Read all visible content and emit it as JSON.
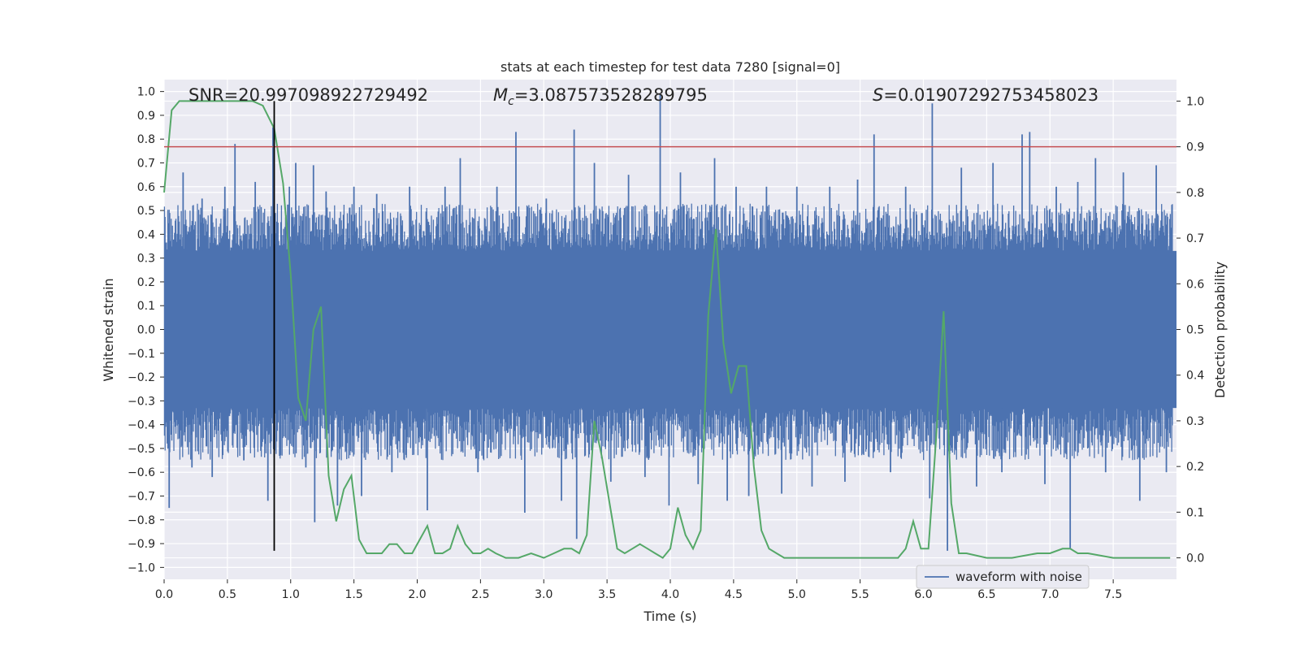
{
  "chart_data": {
    "type": "line",
    "title": "stats at each timestep for test data 7280 [signal=0]",
    "xlabel": "Time (s)",
    "ylabel": "Whitened strain",
    "y2label": "Detection probability",
    "xlim": [
      0.0,
      8.0
    ],
    "ylim": [
      -1.05,
      1.05
    ],
    "y2lim": [
      -0.047,
      1.047
    ],
    "x_ticks": [
      "0.0",
      "0.5",
      "1.0",
      "1.5",
      "2.0",
      "2.5",
      "3.0",
      "3.5",
      "4.0",
      "4.5",
      "5.0",
      "5.5",
      "6.0",
      "6.5",
      "7.0",
      "7.5"
    ],
    "y_ticks": [
      "1.0",
      "0.9",
      "0.8",
      "0.7",
      "0.6",
      "0.5",
      "0.4",
      "0.3",
      "0.2",
      "0.1",
      "0.0",
      "−0.1",
      "−0.2",
      "−0.3",
      "−0.4",
      "−0.5",
      "−0.6",
      "−0.7",
      "−0.8",
      "−0.9",
      "−1.0"
    ],
    "y2_ticks": [
      "1.0",
      "0.9",
      "0.8",
      "0.7",
      "0.6",
      "0.5",
      "0.4",
      "0.3",
      "0.2",
      "0.1",
      "0.0"
    ],
    "annotations": {
      "snr": "SNR=20.997098922729492",
      "mc_symbol": "M",
      "mc_subscript": "c",
      "mc_value": "=3.087573528289795",
      "s_symbol": "S",
      "s_value": "=0.01907292753458023"
    },
    "threshold": 0.9,
    "marker_time": 0.87,
    "waveform": {
      "name": "waveform with noise",
      "band_upper": 0.33,
      "band_lower": -0.33,
      "spikes": [
        [
          0.04,
          -0.75
        ],
        [
          0.15,
          0.66
        ],
        [
          0.22,
          -0.58
        ],
        [
          0.3,
          0.55
        ],
        [
          0.38,
          -0.62
        ],
        [
          0.48,
          0.6
        ],
        [
          0.56,
          0.78
        ],
        [
          0.63,
          -0.55
        ],
        [
          0.72,
          0.62
        ],
        [
          0.82,
          -0.72
        ],
        [
          0.86,
          0.85
        ],
        [
          0.99,
          0.6
        ],
        [
          1.04,
          0.7
        ],
        [
          1.12,
          -0.58
        ],
        [
          1.18,
          0.69
        ],
        [
          1.19,
          -0.81
        ],
        [
          1.28,
          0.58
        ],
        [
          1.37,
          -0.74
        ],
        [
          1.5,
          0.6
        ],
        [
          1.56,
          -0.7
        ],
        [
          1.68,
          0.57
        ],
        [
          1.8,
          -0.6
        ],
        [
          1.94,
          0.6
        ],
        [
          2.08,
          -0.76
        ],
        [
          2.22,
          0.6
        ],
        [
          2.34,
          0.72
        ],
        [
          2.48,
          -0.6
        ],
        [
          2.63,
          0.6
        ],
        [
          2.78,
          0.83
        ],
        [
          2.85,
          -0.77
        ],
        [
          3.02,
          0.55
        ],
        [
          3.14,
          -0.72
        ],
        [
          3.24,
          0.84
        ],
        [
          3.26,
          -0.88
        ],
        [
          3.4,
          0.7
        ],
        [
          3.53,
          -0.64
        ],
        [
          3.67,
          0.65
        ],
        [
          3.8,
          -0.62
        ],
        [
          3.92,
          0.99
        ],
        [
          3.99,
          -0.74
        ],
        [
          4.08,
          0.66
        ],
        [
          4.22,
          -0.65
        ],
        [
          4.35,
          0.72
        ],
        [
          4.45,
          -0.72
        ],
        [
          4.52,
          0.6
        ],
        [
          4.62,
          -0.7
        ],
        [
          4.76,
          0.6
        ],
        [
          4.88,
          -0.69
        ],
        [
          5.0,
          0.6
        ],
        [
          5.12,
          -0.66
        ],
        [
          5.26,
          0.6
        ],
        [
          5.38,
          -0.64
        ],
        [
          5.48,
          0.63
        ],
        [
          5.61,
          0.82
        ],
        [
          5.74,
          -0.6
        ],
        [
          5.86,
          0.6
        ],
        [
          6.05,
          -0.71
        ],
        [
          6.07,
          0.95
        ],
        [
          6.19,
          -0.93
        ],
        [
          6.3,
          0.68
        ],
        [
          6.42,
          -0.66
        ],
        [
          6.55,
          0.7
        ],
        [
          6.62,
          -0.6
        ],
        [
          6.78,
          0.82
        ],
        [
          6.84,
          0.83
        ],
        [
          6.96,
          -0.65
        ],
        [
          7.05,
          0.6
        ],
        [
          7.16,
          -0.92
        ],
        [
          7.22,
          0.62
        ],
        [
          7.36,
          0.72
        ],
        [
          7.44,
          -0.6
        ],
        [
          7.58,
          0.66
        ],
        [
          7.71,
          -0.72
        ],
        [
          7.84,
          0.69
        ],
        [
          7.92,
          -0.6
        ]
      ]
    },
    "probability": {
      "x": [
        0.0,
        0.06,
        0.12,
        0.3,
        0.5,
        0.7,
        0.78,
        0.87,
        0.94,
        1.0,
        1.06,
        1.12,
        1.18,
        1.24,
        1.3,
        1.36,
        1.42,
        1.48,
        1.54,
        1.6,
        1.66,
        1.72,
        1.78,
        1.84,
        1.9,
        1.96,
        2.02,
        2.08,
        2.14,
        2.2,
        2.26,
        2.32,
        2.38,
        2.44,
        2.5,
        2.56,
        2.62,
        2.7,
        2.8,
        2.9,
        3.0,
        3.08,
        3.16,
        3.22,
        3.28,
        3.34,
        3.4,
        3.46,
        3.52,
        3.58,
        3.64,
        3.7,
        3.76,
        3.82,
        3.88,
        3.94,
        4.0,
        4.06,
        4.12,
        4.18,
        4.24,
        4.3,
        4.36,
        4.42,
        4.48,
        4.54,
        4.6,
        4.66,
        4.72,
        4.78,
        4.84,
        4.9,
        5.0,
        5.2,
        5.4,
        5.6,
        5.8,
        5.86,
        5.92,
        5.98,
        6.04,
        6.1,
        6.16,
        6.22,
        6.28,
        6.34,
        6.5,
        6.7,
        6.9,
        7.0,
        7.1,
        7.16,
        7.22,
        7.3,
        7.5,
        7.7,
        7.95
      ],
      "y": [
        0.8,
        0.98,
        1.0,
        1.0,
        1.0,
        1.0,
        0.99,
        0.94,
        0.82,
        0.62,
        0.35,
        0.3,
        0.5,
        0.55,
        0.18,
        0.08,
        0.15,
        0.18,
        0.04,
        0.01,
        0.01,
        0.01,
        0.03,
        0.03,
        0.01,
        0.01,
        0.04,
        0.07,
        0.01,
        0.01,
        0.02,
        0.07,
        0.03,
        0.01,
        0.01,
        0.02,
        0.01,
        0.0,
        0.0,
        0.01,
        0.0,
        0.01,
        0.02,
        0.02,
        0.01,
        0.05,
        0.3,
        0.22,
        0.12,
        0.02,
        0.01,
        0.02,
        0.03,
        0.02,
        0.01,
        0.0,
        0.02,
        0.11,
        0.05,
        0.02,
        0.06,
        0.53,
        0.72,
        0.47,
        0.36,
        0.42,
        0.42,
        0.2,
        0.06,
        0.02,
        0.01,
        0.0,
        0.0,
        0.0,
        0.0,
        0.0,
        0.0,
        0.02,
        0.08,
        0.02,
        0.02,
        0.26,
        0.54,
        0.12,
        0.01,
        0.01,
        0.0,
        0.0,
        0.01,
        0.01,
        0.02,
        0.02,
        0.01,
        0.01,
        0.0,
        0.0,
        0.0
      ]
    },
    "legend": {
      "position": "lower-right",
      "entries": [
        "waveform with noise"
      ]
    },
    "colors": {
      "waveform": "#4c72b0",
      "probability": "#55a868",
      "threshold": "#c44e52",
      "marker": "#000000",
      "plot_bg": "#eaeaf2",
      "grid": "#ffffff"
    }
  }
}
